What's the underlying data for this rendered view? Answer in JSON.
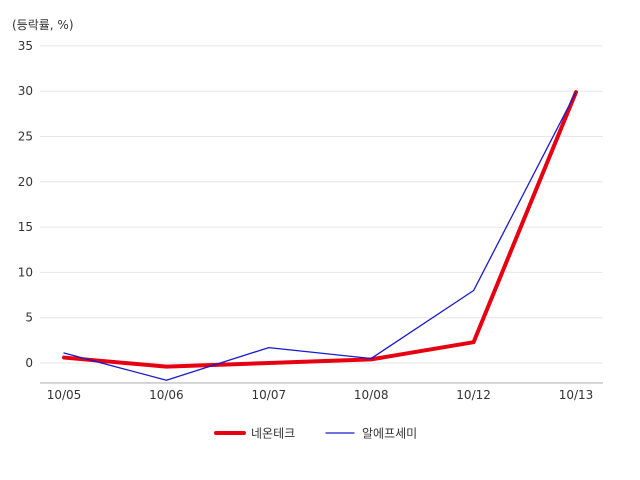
{
  "chart_data": {
    "type": "line",
    "unit_label": "(등락률, %)",
    "categories": [
      "10/05",
      "10/06",
      "10/07",
      "10/08",
      "10/12",
      "10/13"
    ],
    "yticks": [
      0,
      5,
      10,
      15,
      20,
      25,
      30,
      35
    ],
    "ylim": [
      -2.2,
      35
    ],
    "grid": true,
    "legend_position": "bottom",
    "series": [
      {
        "name": "네온테크",
        "color": "#e60012",
        "line_weight": "thick",
        "values": [
          0.6,
          -0.4,
          0.0,
          0.4,
          2.3,
          29.9
        ]
      },
      {
        "name": "알에프세미",
        "color": "#1a1acc",
        "line_weight": "thin",
        "values": [
          1.1,
          -1.9,
          1.7,
          0.5,
          8.0,
          29.9
        ]
      }
    ]
  }
}
